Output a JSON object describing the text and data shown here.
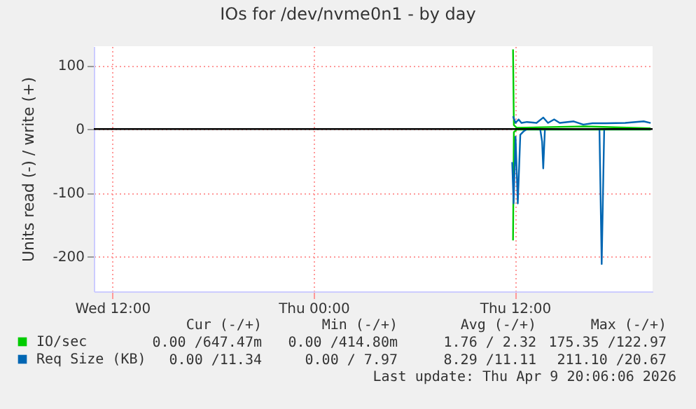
{
  "chart_data": {
    "type": "line",
    "title": "IOs for /dev/nvme0n1 - by day",
    "ylabel": "Units read (-) / write (+)",
    "xlim": [
      "2026-04-08T10:54",
      "2026-04-09T20:12"
    ],
    "xticks": [
      {
        "value": "2026-04-08T12:00",
        "label": "Wed 12:00"
      },
      {
        "value": "2026-04-09T00:00",
        "label": "Thu 00:00"
      },
      {
        "value": "2026-04-09T12:00",
        "label": "Thu 12:00"
      }
    ],
    "ylim": [
      -255,
      130
    ],
    "yticks": [
      -200,
      -100,
      0,
      100
    ],
    "grid": true,
    "legend": "bottom",
    "ref_lines": [
      {
        "axis": "y",
        "value": 0,
        "color": "#000000"
      }
    ],
    "series": [
      {
        "name": "IO/sec",
        "color": "#00cc00",
        "x": [
          "2026-04-09T11:53",
          "2026-04-09T11:56",
          "2026-04-09T12:06",
          "2026-04-09T16:12",
          "2026-04-09T20:05"
        ],
        "values": [
          125,
          6,
          2,
          4,
          1
        ]
      },
      {
        "color": "#00cc00",
        "x": [
          "2026-04-09T11:53",
          "2026-04-09T11:56",
          "2026-04-09T12:06",
          "2026-04-09T20:05"
        ],
        "values": [
          -175,
          -5,
          -1,
          -1
        ]
      },
      {
        "name": "Req Size (KB)",
        "color": "#0066b3",
        "x": [
          "2026-04-09T11:53",
          "2026-04-09T12:02",
          "2026-04-09T12:13",
          "2026-04-09T12:23",
          "2026-04-09T12:43",
          "2026-04-09T13:17",
          "2026-04-09T13:41",
          "2026-04-09T13:58",
          "2026-04-09T14:20",
          "2026-04-09T14:40",
          "2026-04-09T15:30",
          "2026-04-09T16:04",
          "2026-04-09T16:37",
          "2026-04-09T17:26",
          "2026-04-09T18:34",
          "2026-04-09T19:40",
          "2026-04-09T20:05"
        ],
        "values": [
          20,
          9.5,
          15,
          9.5,
          11,
          9.5,
          18,
          9.5,
          15,
          9.5,
          12,
          7,
          9,
          9,
          9.5,
          12,
          9.5
        ]
      },
      {
        "color": "#0066b3",
        "x": [
          "2026-04-09T11:50",
          "2026-04-09T11:55",
          "2026-04-09T12:02",
          "2026-04-09T12:10",
          "2026-04-09T12:19",
          "2026-04-09T12:30",
          "2026-04-09T12:43",
          "2026-04-09T13:30",
          "2026-04-09T13:37",
          "2026-04-09T13:41",
          "2026-04-09T13:47",
          "2026-04-09T17:02",
          "2026-04-09T17:10",
          "2026-04-09T17:19",
          "2026-04-09T20:05"
        ],
        "values": [
          -52,
          -117,
          -12,
          -117,
          -9,
          -4,
          0,
          0,
          -20,
          -62,
          0,
          0,
          -212,
          0,
          0
        ]
      }
    ],
    "annotations": [
      "Cur (-/+)",
      "Min (-/+)",
      "Avg (-/+)",
      "Max (-/+)",
      "0.00 /647.47m",
      "0.00 /414.80m",
      "1.76 / 2.32",
      "175.35 /122.97",
      "0.00 /11.34",
      "0.00 / 7.97",
      "8.29 /11.11",
      "211.10 /20.67",
      "Last update: Thu Apr  9 20:06:06 2026"
    ]
  }
}
